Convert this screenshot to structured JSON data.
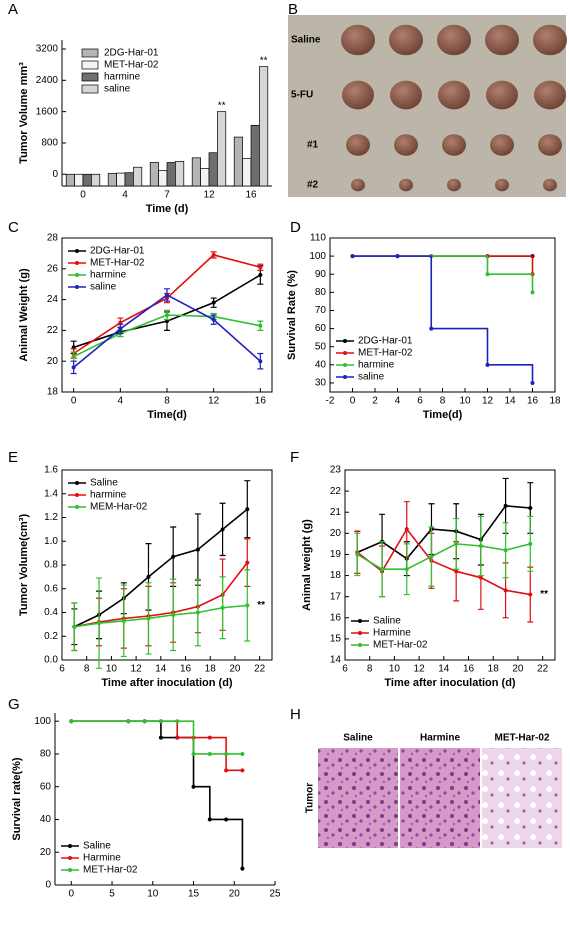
{
  "chart_data": [
    {
      "type": "bar",
      "panel": "A",
      "xlabel": "Time (d)",
      "ylabel": "Tumor Volume mm³",
      "categories": [
        "0",
        "4",
        "7",
        "12",
        "16"
      ],
      "ylim": [
        -300,
        3430
      ],
      "yticks": [
        0,
        800,
        1600,
        2400,
        3200
      ],
      "legend": "upper left",
      "series": [
        {
          "name": "2DG-Har-01",
          "color": "#b4b4b4",
          "values": [
            0,
            20,
            300,
            420,
            950
          ]
        },
        {
          "name": "MET-Har-02",
          "color": "#f2f2f2",
          "values": [
            0,
            30,
            100,
            150,
            400
          ]
        },
        {
          "name": "harmine",
          "color": "#6e6e6e",
          "values": [
            0,
            40,
            300,
            550,
            1250
          ]
        },
        {
          "name": "saline",
          "color": "#d6d6d6",
          "values": [
            0,
            180,
            330,
            1600,
            2750
          ]
        }
      ],
      "annotations": [
        {
          "text": "**",
          "series_index": 3,
          "index": 3
        },
        {
          "text": "**",
          "series_index": 3,
          "index": 4
        }
      ]
    },
    {
      "type": "line",
      "panel": "C",
      "xlabel": "Time(d)",
      "ylabel": "Animal Weight (g)",
      "x": [
        0,
        4,
        8,
        12,
        16
      ],
      "xlim": [
        -1,
        17
      ],
      "xticks": [
        0,
        4,
        8,
        12,
        16
      ],
      "ylim": [
        18,
        28
      ],
      "yticks": [
        18,
        20,
        22,
        24,
        26,
        28
      ],
      "legend": "upper left",
      "series": [
        {
          "name": "2DG-Har-01",
          "color": "#000000",
          "values": [
            20.9,
            21.9,
            22.6,
            23.8,
            25.6
          ],
          "errors": [
            0.4,
            0.3,
            0.6,
            0.3,
            0.6
          ]
        },
        {
          "name": "MET-Har-02",
          "color": "#e01010",
          "values": [
            20.5,
            22.5,
            24.1,
            26.9,
            26.1
          ],
          "errors": [
            0.3,
            0.3,
            0.3,
            0.2,
            0.2
          ]
        },
        {
          "name": "harmine",
          "color": "#30c030",
          "values": [
            20.3,
            21.8,
            23.0,
            22.9,
            22.3
          ],
          "errors": [
            0.3,
            0.2,
            0.3,
            0.2,
            0.3
          ]
        },
        {
          "name": "saline",
          "color": "#2020c0",
          "values": [
            19.6,
            22.1,
            24.3,
            22.7,
            20.0
          ],
          "errors": [
            0.4,
            0.3,
            0.4,
            0.3,
            0.5
          ]
        }
      ]
    },
    {
      "type": "step",
      "panel": "D",
      "xlabel": "Time(d)",
      "ylabel": "Survival Rate (%)",
      "x": [
        0,
        4,
        7,
        12,
        16
      ],
      "xlim": [
        -2,
        18
      ],
      "xticks": [
        -2,
        0,
        2,
        4,
        6,
        8,
        10,
        12,
        14,
        16,
        18
      ],
      "ylim": [
        25,
        110
      ],
      "yticks": [
        30,
        40,
        50,
        60,
        70,
        80,
        90,
        100,
        110
      ],
      "legend": "lower left",
      "series": [
        {
          "name": "2DG-Har-01",
          "color": "#000000",
          "values": [
            100,
            100,
            100,
            100,
            100
          ]
        },
        {
          "name": "MET-Har-02",
          "color": "#e01010",
          "values": [
            100,
            100,
            100,
            100,
            90
          ]
        },
        {
          "name": "harmine",
          "color": "#30c030",
          "values": [
            100,
            100,
            100,
            90,
            80
          ]
        },
        {
          "name": "saline",
          "color": "#2020c0",
          "values": [
            100,
            100,
            60,
            40,
            30
          ]
        }
      ]
    },
    {
      "type": "line",
      "panel": "E",
      "xlabel": "Time after inoculation (d)",
      "ylabel": "Tumor Volume(cm³)",
      "x": [
        7,
        9,
        11,
        13,
        15,
        17,
        19,
        21
      ],
      "xlim": [
        6,
        23
      ],
      "xticks": [
        6,
        8,
        10,
        12,
        14,
        16,
        18,
        20,
        22
      ],
      "ylim": [
        0,
        1.6
      ],
      "yticks": [
        {
          "value": 0,
          "label": "0.0"
        },
        0.2,
        0.4,
        0.6,
        0.8,
        {
          "value": 1,
          "label": "1.0"
        },
        1.2,
        1.4,
        1.6
      ],
      "legend": "upper left",
      "series": [
        {
          "name": "Saline",
          "color": "#000000",
          "values": [
            0.28,
            0.38,
            0.52,
            0.7,
            0.87,
            0.93,
            1.1,
            1.27
          ],
          "errors": [
            0.15,
            0.2,
            0.13,
            0.28,
            0.25,
            0.3,
            0.22,
            0.24
          ]
        },
        {
          "name": "harmine",
          "color": "#e01010",
          "values": [
            0.28,
            0.32,
            0.35,
            0.37,
            0.4,
            0.45,
            0.55,
            0.82
          ],
          "errors": [
            0.2,
            0.2,
            0.25,
            0.25,
            0.25,
            0.22,
            0.3,
            0.2
          ]
        },
        {
          "name": "MEM-Har-02",
          "color": "#30c030",
          "values": [
            0.28,
            0.31,
            0.33,
            0.35,
            0.38,
            0.4,
            0.44,
            0.46
          ],
          "errors": [
            0.2,
            0.38,
            0.3,
            0.3,
            0.3,
            0.28,
            0.26,
            0.3
          ]
        }
      ],
      "annotations": [
        {
          "text": "**",
          "series_index": 2,
          "index": 7
        }
      ]
    },
    {
      "type": "line",
      "panel": "F",
      "xlabel": "Time after inoculation (d)",
      "ylabel": "Animal weight (g)",
      "x": [
        7,
        9,
        11,
        13,
        15,
        17,
        19,
        21
      ],
      "xlim": [
        6,
        23
      ],
      "xticks": [
        6,
        8,
        10,
        12,
        14,
        16,
        18,
        20,
        22
      ],
      "ylim": [
        14,
        23
      ],
      "yticks": [
        14,
        15,
        16,
        17,
        18,
        19,
        20,
        21,
        22,
        23
      ],
      "legend": "lower left",
      "series": [
        {
          "name": "Saline",
          "color": "#000000",
          "values": [
            19.1,
            19.6,
            18.8,
            20.2,
            20.1,
            19.7,
            21.3,
            21.2
          ],
          "errors": [
            1.0,
            1.3,
            0.8,
            1.2,
            1.3,
            1.2,
            1.3,
            1.2
          ]
        },
        {
          "name": "Harmine",
          "color": "#e01010",
          "values": [
            19.1,
            18.2,
            20.2,
            18.7,
            18.2,
            17.9,
            17.3,
            17.1
          ],
          "errors": [
            1.0,
            1.2,
            1.3,
            1.3,
            1.4,
            1.5,
            1.3,
            1.3
          ]
        },
        {
          "name": "MET-Har-02",
          "color": "#30c030",
          "values": [
            19.0,
            18.3,
            18.3,
            18.9,
            19.5,
            19.4,
            19.2,
            19.5
          ],
          "errors": [
            1.0,
            1.3,
            1.2,
            1.4,
            1.2,
            1.4,
            1.3,
            1.3
          ]
        }
      ],
      "annotations": [
        {
          "text": "**",
          "series_index": 1,
          "index": 7
        }
      ]
    },
    {
      "type": "step",
      "panel": "G",
      "xlabel": null,
      "ylabel": "Survival rate(%)",
      "x": [
        0,
        7,
        9,
        11,
        13,
        15,
        17,
        19,
        21
      ],
      "xlim": [
        -2,
        25
      ],
      "xticks": [
        0,
        5,
        10,
        15,
        20,
        25
      ],
      "ylim": [
        0,
        105
      ],
      "yticks": [
        0,
        20,
        40,
        60,
        80,
        100
      ],
      "legend": "lower left",
      "series": [
        {
          "name": "Saline",
          "color": "#000000",
          "values": [
            100,
            100,
            100,
            90,
            90,
            60,
            40,
            40,
            10
          ]
        },
        {
          "name": "Harmine",
          "color": "#e01010",
          "values": [
            100,
            100,
            100,
            100,
            90,
            90,
            90,
            70,
            70
          ]
        },
        {
          "name": "MET-Har-02",
          "color": "#30c030",
          "values": [
            100,
            100,
            100,
            100,
            100,
            80,
            80,
            80,
            80
          ]
        }
      ]
    }
  ],
  "photos": [
    {
      "panel": "B",
      "row_labels": [
        "Saline",
        "5-FU",
        "#1",
        "#2"
      ]
    },
    {
      "panel": "H",
      "column_labels": [
        "Saline",
        "Harmine",
        "MET-Har-02"
      ],
      "row_label": "Tumor"
    }
  ]
}
